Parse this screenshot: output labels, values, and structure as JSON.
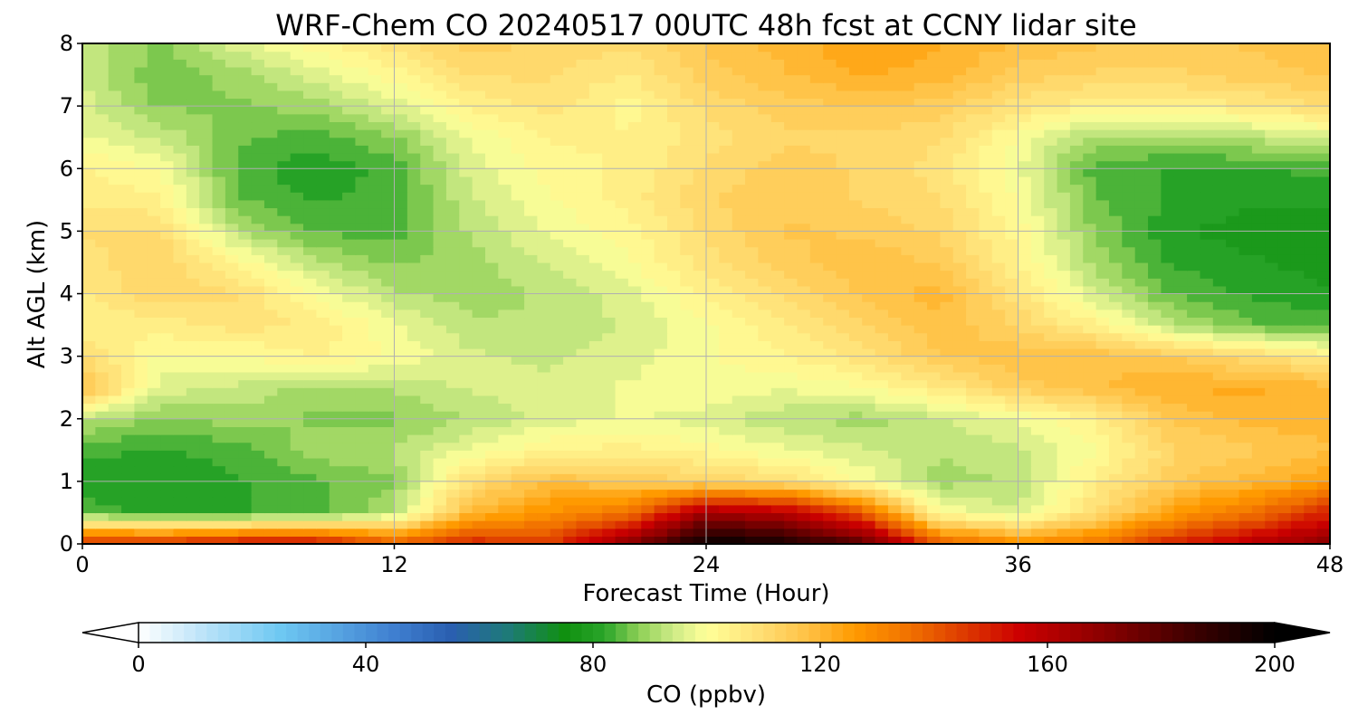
{
  "chart_data": {
    "type": "heatmap",
    "title": "WRF-Chem CO  20240517 00UTC 48h fcst at CCNY lidar site",
    "xlabel": "Forecast Time (Hour)",
    "ylabel": "Alt AGL (km)",
    "xlim": [
      0,
      48
    ],
    "ylim": [
      0,
      8
    ],
    "xticks": [
      0,
      12,
      24,
      36,
      48
    ],
    "yticks": [
      0,
      1,
      2,
      3,
      4,
      5,
      6,
      7,
      8
    ],
    "grid": true,
    "x": [
      0,
      3,
      6,
      9,
      12,
      15,
      18,
      21,
      24,
      27,
      30,
      33,
      36,
      39,
      42,
      45,
      48
    ],
    "y": [
      0,
      0.5,
      1,
      1.5,
      2,
      2.5,
      3,
      3.5,
      4,
      4.5,
      5,
      5.5,
      6,
      6.5,
      7,
      7.5,
      8
    ],
    "values": [
      [
        150,
        150,
        155,
        155,
        140,
        150,
        145,
        170,
        200,
        195,
        180,
        140,
        130,
        135,
        150,
        160,
        170
      ],
      [
        85,
        80,
        82,
        84,
        92,
        120,
        128,
        135,
        165,
        160,
        140,
        100,
        95,
        110,
        125,
        135,
        150
      ],
      [
        80,
        80,
        82,
        85,
        88,
        110,
        118,
        115,
        112,
        110,
        100,
        90,
        92,
        105,
        115,
        120,
        125
      ],
      [
        84,
        82,
        84,
        90,
        92,
        98,
        103,
        105,
        102,
        98,
        95,
        92,
        94,
        100,
        112,
        115,
        118
      ],
      [
        92,
        88,
        90,
        88,
        88,
        92,
        96,
        98,
        96,
        92,
        90,
        94,
        98,
        104,
        116,
        120,
        120
      ],
      [
        118,
        96,
        94,
        90,
        92,
        95,
        95,
        98,
        100,
        98,
        100,
        106,
        114,
        118,
        122,
        122,
        120
      ],
      [
        110,
        100,
        100,
        104,
        100,
        95,
        94,
        96,
        100,
        103,
        108,
        115,
        118,
        118,
        115,
        110,
        105
      ],
      [
        104,
        105,
        108,
        106,
        98,
        92,
        92,
        95,
        100,
        106,
        112,
        118,
        112,
        104,
        92,
        86,
        84
      ],
      [
        106,
        112,
        110,
        100,
        92,
        90,
        92,
        96,
        104,
        110,
        116,
        120,
        108,
        95,
        85,
        82,
        80
      ],
      [
        108,
        112,
        102,
        92,
        88,
        90,
        95,
        100,
        108,
        114,
        118,
        115,
        104,
        90,
        82,
        80,
        78
      ],
      [
        110,
        110,
        92,
        85,
        84,
        92,
        98,
        102,
        110,
        116,
        115,
        112,
        102,
        88,
        80,
        78,
        78
      ],
      [
        106,
        104,
        86,
        82,
        84,
        94,
        100,
        105,
        112,
        115,
        112,
        110,
        100,
        86,
        82,
        80,
        80
      ],
      [
        104,
        100,
        84,
        80,
        84,
        96,
        102,
        104,
        110,
        114,
        112,
        108,
        98,
        84,
        82,
        82,
        84
      ],
      [
        98,
        94,
        86,
        84,
        88,
        98,
        104,
        104,
        108,
        112,
        112,
        110,
        100,
        90,
        90,
        92,
        96
      ],
      [
        96,
        88,
        88,
        90,
        96,
        104,
        108,
        102,
        110,
        114,
        116,
        114,
        108,
        104,
        104,
        106,
        110
      ],
      [
        94,
        86,
        90,
        96,
        102,
        110,
        110,
        106,
        114,
        118,
        122,
        120,
        114,
        112,
        112,
        114,
        116
      ],
      [
        94,
        88,
        96,
        102,
        108,
        114,
        112,
        110,
        116,
        120,
        124,
        122,
        118,
        116,
        114,
        116,
        118
      ]
    ],
    "colorbar": {
      "label": "CO  (ppbv)",
      "ticks": [
        0,
        40,
        80,
        120,
        160,
        200
      ],
      "range": [
        0,
        200
      ],
      "extend": "both",
      "orientation": "horizontal",
      "placement": "bottom",
      "stops": [
        {
          "v": 0,
          "color": "#ffffff"
        },
        {
          "v": 12,
          "color": "#b8e2f8"
        },
        {
          "v": 25,
          "color": "#6ec8f2"
        },
        {
          "v": 45,
          "color": "#3f7fd0"
        },
        {
          "v": 55,
          "color": "#2a5fb0"
        },
        {
          "v": 65,
          "color": "#1e7a78"
        },
        {
          "v": 75,
          "color": "#109010"
        },
        {
          "v": 82,
          "color": "#2aa52a"
        },
        {
          "v": 88,
          "color": "#8ccf55"
        },
        {
          "v": 94,
          "color": "#cdea86"
        },
        {
          "v": 100,
          "color": "#ffff99"
        },
        {
          "v": 110,
          "color": "#ffdc72"
        },
        {
          "v": 118,
          "color": "#ffc043"
        },
        {
          "v": 126,
          "color": "#ff9a00"
        },
        {
          "v": 136,
          "color": "#f07000"
        },
        {
          "v": 146,
          "color": "#dc3600"
        },
        {
          "v": 155,
          "color": "#cc0000"
        },
        {
          "v": 170,
          "color": "#8a0000"
        },
        {
          "v": 185,
          "color": "#400000"
        },
        {
          "v": 200,
          "color": "#000000"
        }
      ]
    }
  }
}
